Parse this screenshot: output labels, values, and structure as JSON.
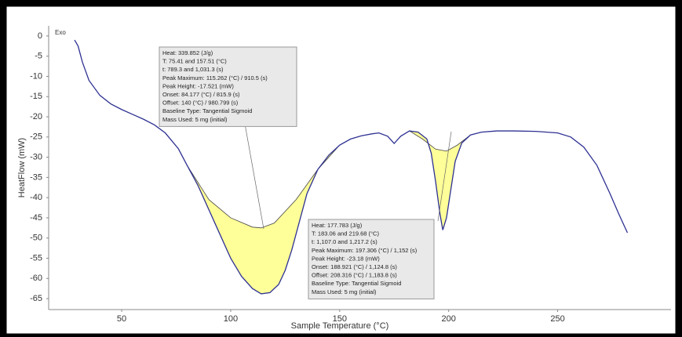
{
  "chart_data": {
    "type": "line",
    "x_label": "Sample Temperature (°C)",
    "y_label": "HeatFlow (mW)",
    "corner_label": "Exo",
    "x": [
      28.4,
      30,
      32,
      35,
      40,
      45,
      50,
      55,
      60,
      65,
      70,
      76,
      80,
      85,
      90,
      95,
      100,
      105,
      110,
      114,
      118,
      122,
      125,
      128,
      131,
      135,
      140,
      145,
      150,
      155,
      160,
      165,
      168,
      172,
      175,
      178,
      182,
      186,
      190,
      192,
      194,
      196,
      197.3,
      199,
      201,
      203,
      206,
      210,
      215,
      222,
      230,
      240,
      250,
      256,
      262,
      268,
      274,
      278,
      282
    ],
    "series": [
      {
        "color": "#2e3192",
        "values": [
          -1,
          -2.5,
          -6.5,
          -11,
          -14.7,
          -16.8,
          -18.2,
          -19.4,
          -20.6,
          -22,
          -24,
          -27.9,
          -32,
          -37,
          -43,
          -49,
          -55,
          -59.5,
          -62.5,
          -63.8,
          -63.5,
          -61.5,
          -58,
          -53,
          -47,
          -39,
          -33,
          -29.5,
          -27,
          -25.5,
          -24.7,
          -24.2,
          -24,
          -24.8,
          -26.6,
          -24.8,
          -23.5,
          -23.8,
          -25.5,
          -29,
          -36,
          -44,
          -48,
          -45,
          -38,
          -31,
          -26.5,
          -24.5,
          -23.8,
          -23.5,
          -23.5,
          -23.6,
          -24,
          -25,
          -27.5,
          -32,
          -39,
          -44,
          -48.7
        ]
      }
    ],
    "shaded": [
      {
        "color": "#ffff99",
        "x": [
          80,
          90,
          100,
          110,
          114,
          120,
          130,
          140,
          150
        ],
        "baseline": [
          -32,
          -40.5,
          -45,
          -47.3,
          -47.5,
          -46.3,
          -40.5,
          -33,
          -27
        ]
      },
      {
        "color": "#ffff99",
        "x": [
          182,
          188,
          194,
          199,
          204,
          210
        ],
        "baseline": [
          -23.5,
          -25.5,
          -28,
          -28.5,
          -27,
          -24.5
        ]
      }
    ],
    "annotations": [
      {
        "lines": [
          "Heat: 339.852 (J/g)",
          "T: 75.41 and 157.51 (°C)",
          "t: 789.3 and 1,031.3 (s)",
          "Peak Maximum: 115.262 (°C) / 910.5 (s)",
          "Peak Height: -17.521 (mW)",
          "Onset: 84.177 (°C) / 815.9 (s)",
          "Offset: 140 (°C) / 980.799 (s)",
          "Baseline Type: Tangential Sigmoid",
          "Mass Used: 5 mg (initial)"
        ]
      },
      {
        "lines": [
          "Heat: 177.783 (J/g)",
          "T: 183.06 and 219.68 (°C)",
          "t: 1,107.0 and 1,217.2 (s)",
          "Peak Maximum: 197.306 (°C) / 1,152 (s)",
          "Peak Height: -23.18 (mW)",
          "Onset: 188.921 (°C) / 1,124.8 (s)",
          "Offset: 208.316 (°C) / 1,183.8 (s)",
          "Baseline Type: Tangential Sigmoid",
          "Mass Used: 5 mg (initial)"
        ]
      }
    ],
    "xlim": [
      16.5,
      302
    ],
    "ylim": [
      -67.7,
      2.5
    ],
    "xticks": [
      50,
      100,
      150,
      200,
      250
    ],
    "yticks": [
      0,
      -5,
      -10,
      -15,
      -20,
      -25,
      -30,
      -35,
      -40,
      -45,
      -50,
      -55,
      -60,
      -65
    ]
  }
}
